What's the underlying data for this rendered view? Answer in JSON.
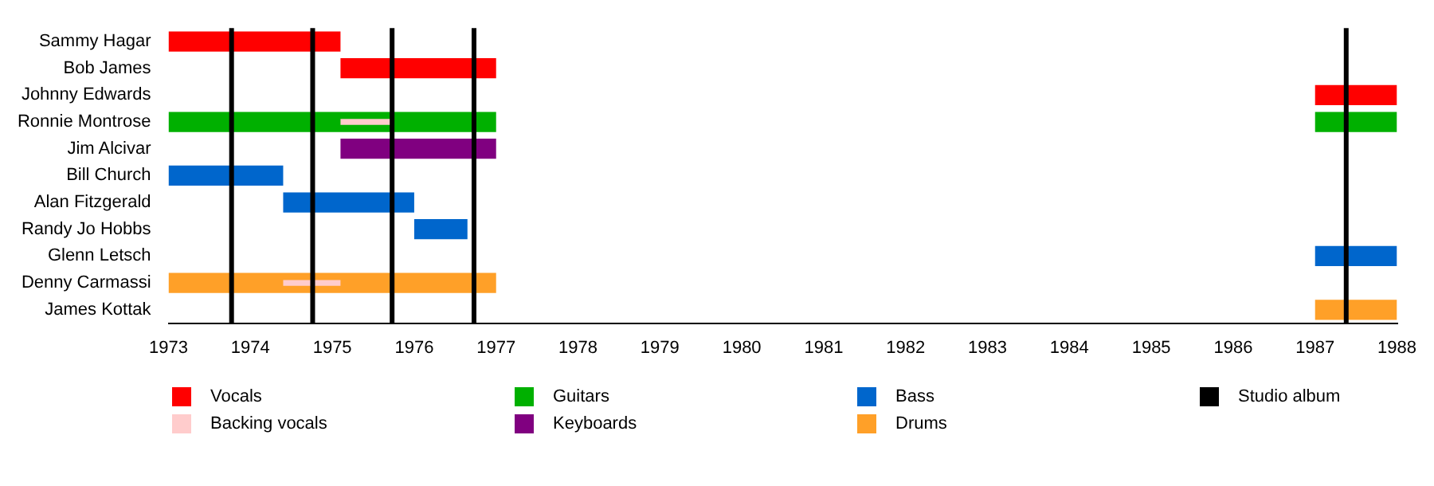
{
  "chart_data": {
    "type": "bar",
    "orientation": "horizontal",
    "categories": [
      "Sammy Hagar",
      "Bob James",
      "Johnny Edwards",
      "Ronnie Montrose",
      "Jim Alcivar",
      "Bill Church",
      "Alan Fitzgerald",
      "Randy Jo Hobbs",
      "Glenn Letsch",
      "Denny Carmassi",
      "James Kottak"
    ],
    "series": [
      {
        "name": "Vocals",
        "color": "#ff0000",
        "base": [
          1973,
          1975.1,
          1987,
          null,
          null,
          null,
          null,
          null,
          null,
          null,
          null
        ],
        "values": [
          2.1,
          1.9,
          1,
          null,
          null,
          null,
          null,
          null,
          null,
          null,
          null
        ]
      },
      {
        "name": "Backing vocals",
        "color": "#ffcccc",
        "base": [
          null,
          null,
          null,
          1975.1,
          null,
          null,
          null,
          null,
          null,
          1974.4,
          null
        ],
        "values": [
          null,
          null,
          null,
          0.65,
          null,
          null,
          null,
          null,
          null,
          0.7,
          null
        ]
      },
      {
        "name": "Guitars",
        "color": "#00b000",
        "base": [
          null,
          null,
          null,
          1973,
          null,
          null,
          null,
          null,
          null,
          null,
          null
        ],
        "values": [
          null,
          null,
          null,
          4,
          null,
          null,
          null,
          null,
          null,
          null,
          null
        ]
      },
      {
        "color": "#00b000",
        "base": [
          null,
          null,
          null,
          1987,
          null,
          null,
          null,
          null,
          null,
          null,
          null
        ],
        "values": [
          null,
          null,
          null,
          1,
          null,
          null,
          null,
          null,
          null,
          null,
          null
        ]
      },
      {
        "name": "Keyboards",
        "color": "#800080",
        "base": [
          null,
          null,
          null,
          null,
          1975.1,
          null,
          null,
          null,
          null,
          null,
          null
        ],
        "values": [
          null,
          null,
          null,
          null,
          1.9,
          null,
          null,
          null,
          null,
          null,
          null
        ]
      },
      {
        "name": "Bass",
        "color": "#0066cc",
        "base": [
          null,
          null,
          null,
          null,
          null,
          1973,
          1974.4,
          1976,
          1987,
          null,
          null
        ],
        "values": [
          null,
          null,
          null,
          null,
          null,
          1.4,
          1.6,
          0.65,
          1,
          null,
          null
        ]
      },
      {
        "name": "Drums",
        "color": "#ffa028",
        "base": [
          null,
          null,
          null,
          null,
          null,
          null,
          null,
          null,
          null,
          1973,
          1987
        ],
        "values": [
          null,
          null,
          null,
          null,
          null,
          null,
          null,
          null,
          null,
          4,
          1
        ]
      }
    ],
    "xlim": [
      1973,
      1988
    ],
    "xticks": [
      1973,
      1974,
      1975,
      1976,
      1977,
      1978,
      1979,
      1980,
      1981,
      1982,
      1983,
      1984,
      1985,
      1986,
      1987,
      1988
    ],
    "ref_lines": [
      {
        "axis": "x",
        "value": 1973.77,
        "label": "Studio album",
        "color": "#000000"
      },
      {
        "axis": "x",
        "value": 1974.76,
        "color": "#000000"
      },
      {
        "axis": "x",
        "value": 1975.73,
        "color": "#000000"
      },
      {
        "axis": "x",
        "value": 1976.73,
        "color": "#000000"
      },
      {
        "axis": "x",
        "value": 1987.38,
        "color": "#000000"
      }
    ],
    "grid": false,
    "legend": "bottom"
  }
}
